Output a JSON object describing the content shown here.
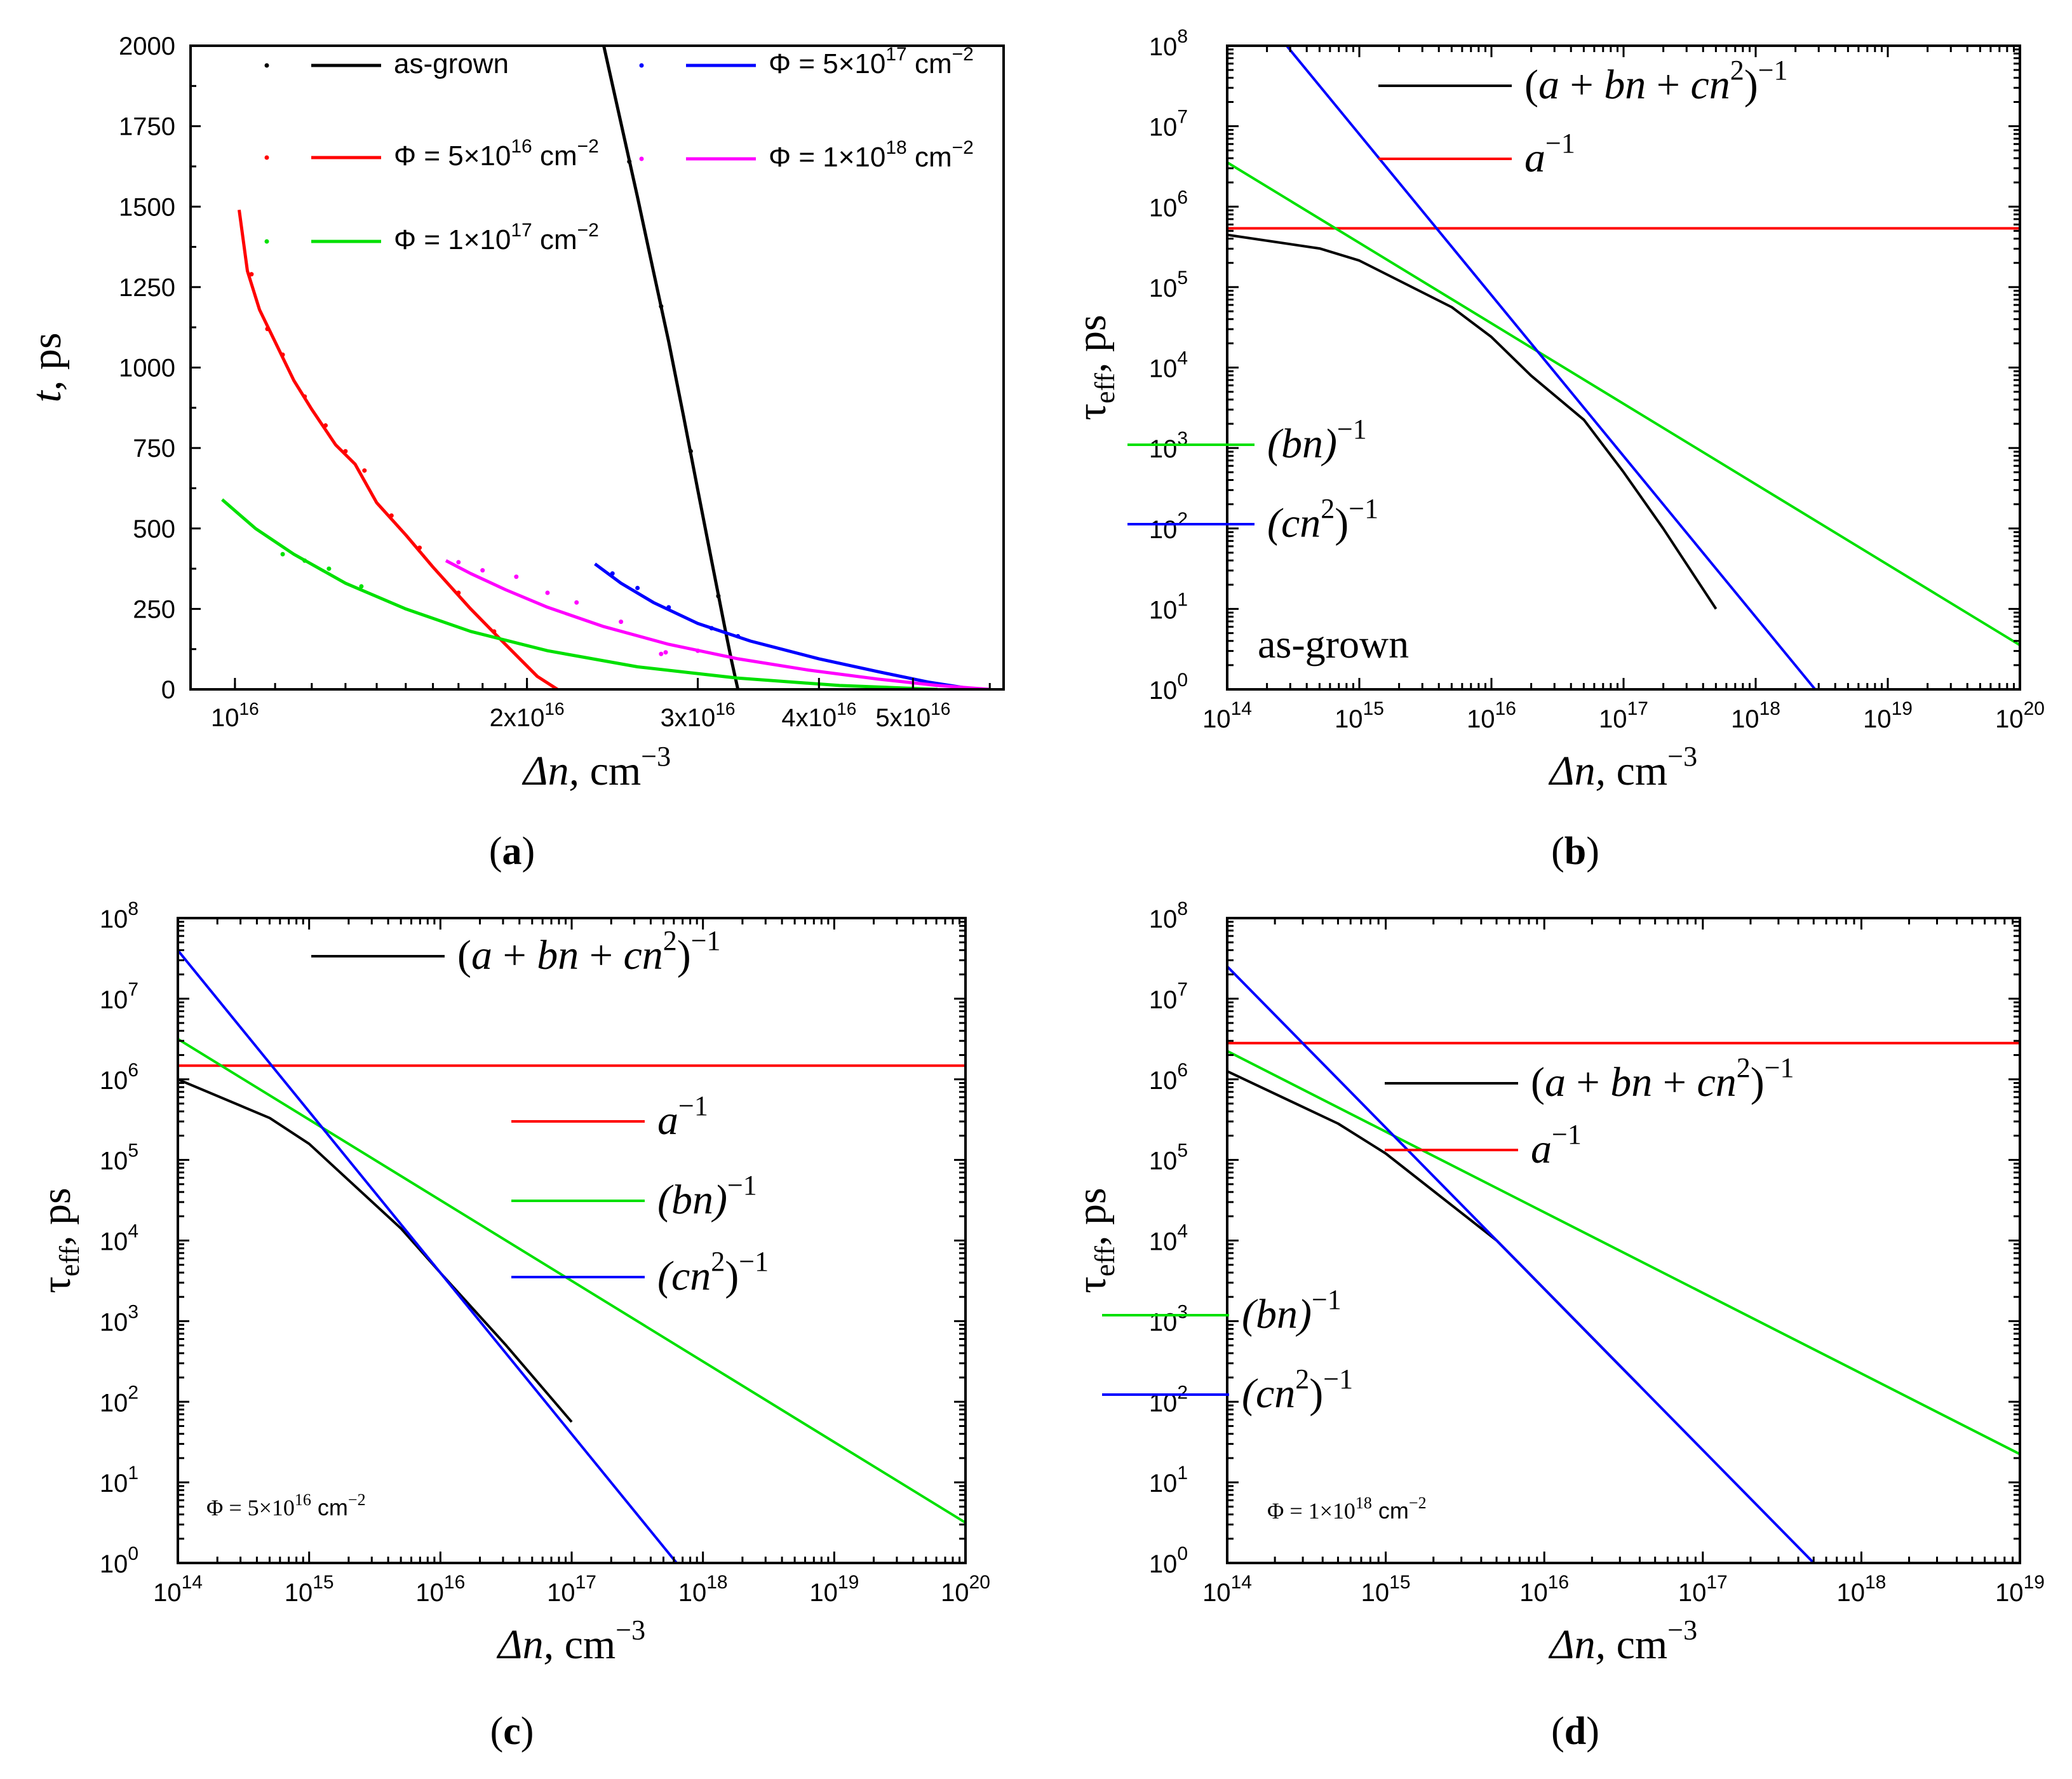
{
  "captions": {
    "a": {
      "open": "(",
      "letter": "a",
      "close": ")"
    },
    "b": {
      "open": "(",
      "letter": "b",
      "close": ")"
    },
    "c": {
      "open": "(",
      "letter": "c",
      "close": ")"
    },
    "d": {
      "open": "(",
      "letter": "d",
      "close": ")"
    }
  },
  "chart_data": [
    {
      "id": "a",
      "type": "line",
      "xscale": "log",
      "xlim": [
        9000000000000000,
        62000000000000000
      ],
      "ylim": [
        0,
        2000
      ],
      "xlabel": {
        "main": "Δn,",
        "unit": "cm",
        "exp": "−3"
      },
      "ylabel": {
        "main": "t,",
        "unit": "ps"
      },
      "x_ticks": [
        {
          "v": 10000000000000000,
          "mant": "10",
          "exp": "16"
        },
        {
          "v": 20000000000000000,
          "mant": "2x10",
          "exp": "16"
        },
        {
          "v": 30000000000000000,
          "mant": "3x10",
          "exp": "16"
        },
        {
          "v": 40000000000000000,
          "mant": "4x10",
          "exp": "16"
        },
        {
          "v": 50000000000000000,
          "mant": "5x10",
          "exp": "16"
        }
      ],
      "y_ticks": [
        0,
        250,
        500,
        750,
        1000,
        1250,
        1500,
        1750,
        2000
      ],
      "series": [
        {
          "name": "as-grown",
          "color": "#000000",
          "label": {
            "text": "as-grown"
          },
          "x": [
            2.4e+16,
            2.5e+16,
            2.6e+16,
            2.7e+16,
            2.8e+16,
            2.9e+16,
            3e+16,
            3.1e+16,
            3.2e+16,
            3.25e+16,
            3.3e+16
          ],
          "y": [
            2000,
            1760,
            1530,
            1300,
            1080,
            850,
            620,
            400,
            190,
            90,
            0
          ],
          "points": {
            "x": [
              2.55e+16,
              2.75e+16,
              2.95e+16,
              3.15e+16
            ],
            "y": [
              1640,
              1190,
              740,
              290
            ]
          }
        },
        {
          "name": "5e17",
          "color": "#0000ff",
          "label": {
            "pre": "Φ = 5×10",
            "exp": "17",
            "post": " cm",
            "exp2": "−2"
          },
          "x": [
            2.35e+16,
            2.5e+16,
            2.7e+16,
            3e+16,
            3.4e+16,
            4e+16,
            4.6e+16,
            5.2e+16,
            5.8e+16
          ],
          "y": [
            390,
            330,
            270,
            205,
            150,
            95,
            55,
            22,
            0
          ],
          "points": {
            "x": [
              2.45e+16,
              2.6e+16,
              2.8e+16,
              3.1e+16,
              3.3e+16
            ],
            "y": [
              360,
              315,
              255,
              190,
              165
            ]
          }
        },
        {
          "name": "5e16",
          "color": "#ff0000",
          "label": {
            "pre": "Φ = 5×10",
            "exp": "16",
            "post": " cm",
            "exp2": "−2"
          },
          "x": [
            1.01e+16,
            1.03e+16,
            1.06e+16,
            1.1e+16,
            1.15e+16,
            1.2e+16,
            1.27e+16,
            1.33e+16,
            1.4e+16,
            1.5e+16,
            1.6e+16,
            1.75e+16,
            1.9e+16,
            2.05e+16,
            2.15e+16
          ],
          "y": [
            1490,
            1300,
            1180,
            1080,
            960,
            870,
            760,
            700,
            580,
            480,
            380,
            250,
            140,
            40,
            0
          ],
          "points": {
            "x": [
              1.04e+16,
              1.08e+16,
              1.12e+16,
              1.18e+16,
              1.24e+16,
              1.3e+16,
              1.36e+16,
              1.45e+16,
              1.55e+16,
              1.7e+16,
              1.85e+16
            ],
            "y": [
              1290,
              1120,
              1040,
              910,
              820,
              740,
              680,
              540,
              440,
              300,
              180
            ]
          }
        },
        {
          "name": "1e18",
          "color": "#ff00ff",
          "label": {
            "pre": "Φ = 1×10",
            "exp": "18",
            "post": " cm",
            "exp2": "−2"
          },
          "x": [
            1.65e+16,
            1.75e+16,
            1.9e+16,
            2.1e+16,
            2.4e+16,
            2.8e+16,
            3.3e+16,
            3.9e+16,
            4.6e+16,
            5.3e+16,
            6e+16
          ],
          "y": [
            400,
            360,
            310,
            255,
            195,
            140,
            95,
            60,
            32,
            12,
            0
          ],
          "points": {
            "x": [
              1.7e+16,
              1.8e+16,
              1.95e+16,
              2.1e+16,
              2.25e+16,
              2.5e+16,
              2.75e+16,
              2.78e+16,
              3e+16
            ],
            "y": [
              395,
              370,
              350,
              300,
              270,
              210,
              110,
              115,
              120
            ]
          }
        },
        {
          "name": "1e17",
          "color": "#00e000",
          "label": {
            "pre": "Φ = 1×10",
            "exp": "17",
            "post": " cm",
            "exp2": "−2"
          },
          "x": [
            9700000000000000.0,
            1.05e+16,
            1.15e+16,
            1.3e+16,
            1.5e+16,
            1.75e+16,
            2.1e+16,
            2.6e+16,
            3.3e+16,
            4.2e+16,
            5.3e+16
          ],
          "y": [
            590,
            500,
            420,
            330,
            250,
            180,
            120,
            70,
            35,
            12,
            0
          ],
          "points": {
            "x": [
              1.12e+16,
              1.18e+16,
              1.25e+16,
              1.35e+16
            ],
            "y": [
              420,
              400,
              375,
              320
            ]
          }
        }
      ]
    },
    {
      "id": "b",
      "type": "line",
      "xscale": "log",
      "yscale": "log",
      "xlim_exp": [
        14,
        20
      ],
      "ylim_exp": [
        0,
        8
      ],
      "xlabel": {
        "main": "Δn,",
        "unit": "cm",
        "exp": "−3"
      },
      "ylabel": {
        "main": "τ",
        "sub": "eff",
        "unit": ", ps"
      },
      "tick_base": "10",
      "x_tick_exps": [
        "14",
        "15",
        "16",
        "17",
        "18",
        "19",
        "20"
      ],
      "y_tick_exps": [
        "0",
        "1",
        "2",
        "3",
        "4",
        "5",
        "6",
        "7",
        "8"
      ],
      "annotation": {
        "text": "as-grown"
      },
      "series": [
        {
          "name": "total",
          "color": "#000000",
          "label": {
            "t1": "(a + bn + cn",
            "e1": "2",
            "t2": ")",
            "e2": "−1"
          },
          "logx": [
            14,
            14.7,
            15,
            15.7,
            16,
            16.3,
            16.7,
            17,
            17.3,
            17.7
          ],
          "logy": [
            5.65,
            5.48,
            5.33,
            4.75,
            4.38,
            3.9,
            3.35,
            2.7,
            2.0,
            1.0
          ]
        },
        {
          "name": "a",
          "color": "#ff0000",
          "label": {
            "t1": "a",
            "e1": "−1"
          },
          "logx": [
            14,
            20
          ],
          "logy": [
            5.73,
            5.73
          ]
        },
        {
          "name": "bn",
          "color": "#00e000",
          "label": {
            "t1": "(bn)",
            "e1": "−1"
          },
          "logx": [
            14,
            20
          ],
          "logy": [
            6.55,
            0.55
          ]
        },
        {
          "name": "cn2",
          "color": "#0000ff",
          "label": {
            "t1": "(cn",
            "e1": "2",
            "t2": ")",
            "e2": "−1"
          },
          "logx": [
            14.45,
            18.45
          ],
          "logy": [
            8.0,
            0.0
          ]
        }
      ]
    },
    {
      "id": "c",
      "type": "line",
      "xscale": "log",
      "yscale": "log",
      "xlim_exp": [
        14,
        20
      ],
      "ylim_exp": [
        0,
        8
      ],
      "xlabel": {
        "main": "Δn,",
        "unit": "cm",
        "exp": "−3"
      },
      "ylabel": {
        "main": "τ",
        "sub": "eff",
        "unit": ", ps"
      },
      "tick_base": "10",
      "x_tick_exps": [
        "14",
        "15",
        "16",
        "17",
        "18",
        "19",
        "20"
      ],
      "y_tick_exps": [
        "0",
        "1",
        "2",
        "3",
        "4",
        "5",
        "6",
        "7",
        "8"
      ],
      "annotation": {
        "pre": "Φ = 5×10",
        "exp": "16",
        "post": " cm",
        "exp2": "−2"
      },
      "series": [
        {
          "name": "total",
          "color": "#000000",
          "label": {
            "t1": "(a + bn + cn",
            "e1": "2",
            "t2": ")",
            "e2": "−1"
          },
          "logx": [
            14,
            14.7,
            15,
            15.7,
            16,
            16.5,
            17
          ],
          "logy": [
            6.0,
            5.52,
            5.2,
            4.15,
            3.6,
            2.7,
            1.75
          ]
        },
        {
          "name": "a",
          "color": "#ff0000",
          "label": {
            "t1": "a",
            "e1": "−1"
          },
          "logx": [
            14,
            20
          ],
          "logy": [
            6.17,
            6.17
          ]
        },
        {
          "name": "bn",
          "color": "#00e000",
          "label": {
            "t1": "(bn)",
            "e1": "−1"
          },
          "logx": [
            14,
            20
          ],
          "logy": [
            6.5,
            0.5
          ]
        },
        {
          "name": "cn2",
          "color": "#0000ff",
          "label": {
            "t1": "(cn",
            "e1": "2",
            "t2": ")",
            "e2": "−1"
          },
          "logx": [
            14,
            17.8
          ],
          "logy": [
            7.6,
            0.0
          ]
        }
      ]
    },
    {
      "id": "d",
      "type": "line",
      "xscale": "log",
      "yscale": "log",
      "xlim_exp": [
        14,
        19
      ],
      "ylim_exp": [
        0,
        8
      ],
      "xlabel": {
        "main": "Δn,",
        "unit": "cm",
        "exp": "−3"
      },
      "ylabel": {
        "main": "τ",
        "sub": "eff",
        "unit": ", ps"
      },
      "tick_base": "10",
      "x_tick_exps": [
        "14",
        "15",
        "16",
        "17",
        "18",
        "19"
      ],
      "y_tick_exps": [
        "0",
        "1",
        "2",
        "3",
        "4",
        "5",
        "6",
        "7",
        "8"
      ],
      "annotation": {
        "pre": "Φ = 1×10",
        "exp": "18",
        "post": " cm",
        "exp2": "−2"
      },
      "series": [
        {
          "name": "total",
          "color": "#000000",
          "label": {
            "t1": "(a + bn + cn",
            "e1": "2",
            "t2": ")",
            "e2": "−1"
          },
          "logx": [
            14,
            14.7,
            15,
            15.7,
            16,
            16.3,
            16.6
          ],
          "logy": [
            6.1,
            5.45,
            5.08,
            4.0,
            3.4,
            2.8,
            2.2
          ]
        },
        {
          "name": "a",
          "color": "#ff0000",
          "label": {
            "t1": "a",
            "e1": "−1"
          },
          "logx": [
            14,
            19
          ],
          "logy": [
            6.45,
            6.45
          ]
        },
        {
          "name": "bn",
          "color": "#00e000",
          "label": {
            "t1": "(bn)",
            "e1": "−1"
          },
          "logx": [
            14,
            19
          ],
          "logy": [
            6.35,
            1.35
          ]
        },
        {
          "name": "cn2",
          "color": "#0000ff",
          "label": {
            "t1": "(cn",
            "e1": "2",
            "t2": ")",
            "e2": "−1"
          },
          "logx": [
            14,
            17.7
          ],
          "logy": [
            7.4,
            0.0
          ]
        }
      ]
    }
  ]
}
